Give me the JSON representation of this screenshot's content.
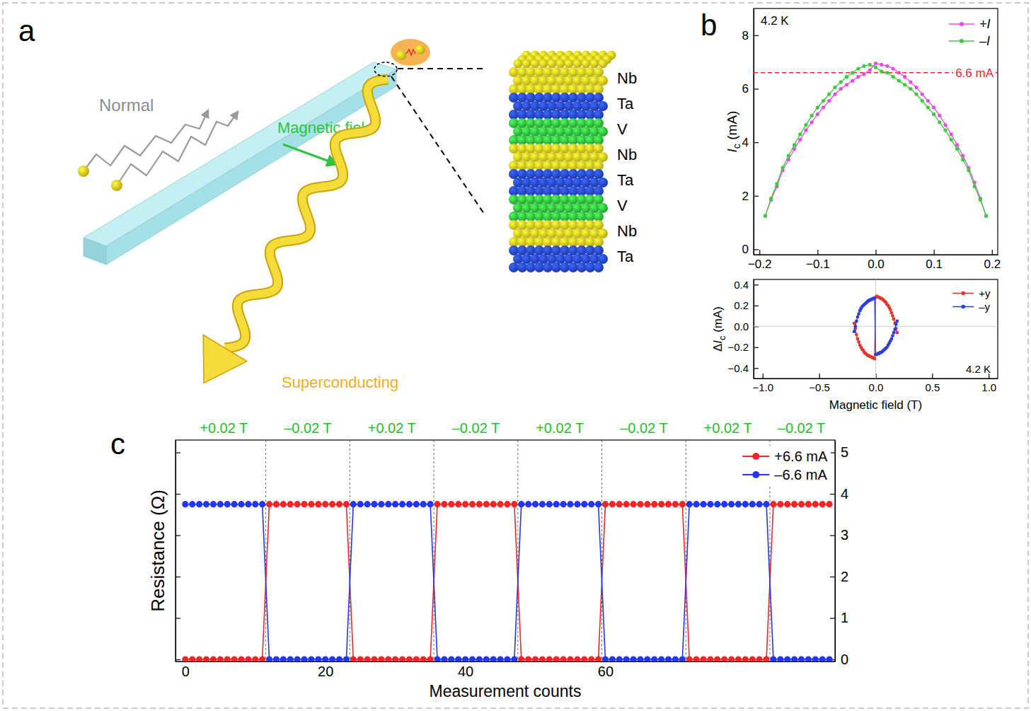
{
  "diagram": {
    "panel_label": "a",
    "normal_label": "Normal",
    "field_label": "Magnetic field",
    "superconducting_label": "Superconducting",
    "layers": [
      "Nb",
      "Ta",
      "V",
      "Nb",
      "Ta",
      "V",
      "Nb",
      "Ta"
    ],
    "layer_colors": {
      "Nb": "#e6d21e",
      "Ta": "#2442d6",
      "V": "#2fc23a"
    }
  },
  "chart_data": [
    {
      "type": "line",
      "panel_label": "b",
      "y_label": "Ic (mA)",
      "x": [
        -0.19,
        -0.18,
        -0.17,
        -0.16,
        -0.15,
        -0.14,
        -0.13,
        -0.12,
        -0.11,
        -0.1,
        -0.09,
        -0.08,
        -0.07,
        -0.06,
        -0.05,
        -0.04,
        -0.03,
        -0.02,
        -0.01,
        0,
        0.01,
        0.02,
        0.03,
        0.04,
        0.05,
        0.06,
        0.07,
        0.08,
        0.09,
        0.1,
        0.11,
        0.12,
        0.13,
        0.14,
        0.15,
        0.16,
        0.17,
        0.18,
        0.19
      ],
      "xlim": [
        -0.21,
        0.21
      ],
      "xticks": [
        {
          "value": -0.2,
          "label": "−0.2"
        },
        {
          "value": -0.1,
          "label": "−0.1"
        },
        {
          "value": 0,
          "label": "0.0"
        },
        0.1,
        0.2
      ],
      "ylim": [
        -0.2,
        9
      ],
      "yticks": [
        0,
        2,
        4,
        6,
        8
      ],
      "series": [
        {
          "name": "+I",
          "color": "#e84ce8",
          "marker": "circle",
          "line_style": "solid",
          "values": [
            1.25,
            1.85,
            2.35,
            2.95,
            3.35,
            3.75,
            4.1,
            4.45,
            4.75,
            5.05,
            5.3,
            5.55,
            5.8,
            6.0,
            6.15,
            6.3,
            6.45,
            6.55,
            6.7,
            6.95,
            6.9,
            6.85,
            6.75,
            6.6,
            6.45,
            6.25,
            6.05,
            5.8,
            5.55,
            5.3,
            5.0,
            4.65,
            4.3,
            3.9,
            3.5,
            3.05,
            2.5,
            1.9,
            1.25
          ]
        },
        {
          "name": "–I",
          "color": "#3ccc3c",
          "marker": "circle",
          "line_style": "solid",
          "values": [
            1.25,
            1.9,
            2.45,
            3.05,
            3.5,
            3.9,
            4.3,
            4.65,
            5.0,
            5.3,
            5.55,
            5.8,
            6.05,
            6.25,
            6.45,
            6.6,
            6.75,
            6.85,
            6.9,
            6.8,
            6.65,
            6.6,
            6.45,
            6.3,
            6.15,
            6.0,
            5.8,
            5.55,
            5.3,
            5.05,
            4.75,
            4.45,
            4.1,
            3.75,
            3.35,
            2.95,
            2.35,
            1.85,
            1.25
          ]
        }
      ],
      "legend": "upper right",
      "annotations": [
        {
          "text": "4.2 K"
        }
      ],
      "reference_lines": [
        {
          "y": 6.6,
          "label": "6.6 mA"
        }
      ]
    },
    {
      "type": "line",
      "x_label": "Magnetic field (T)",
      "y_label": "ΔIc (mA)",
      "x": [
        -0.19,
        -0.18,
        -0.17,
        -0.16,
        -0.15,
        -0.14,
        -0.13,
        -0.12,
        -0.11,
        -0.1,
        -0.09,
        -0.08,
        -0.07,
        -0.06,
        -0.05,
        -0.04,
        -0.03,
        -0.02,
        -0.01,
        0,
        0.01,
        0.02,
        0.03,
        0.04,
        0.05,
        0.06,
        0.07,
        0.08,
        0.09,
        0.1,
        0.11,
        0.12,
        0.13,
        0.14,
        0.15,
        0.16,
        0.17,
        0.18,
        0.19
      ],
      "xlim": [
        -1.08,
        1.08
      ],
      "xticks": [
        {
          "value": -1,
          "label": "−1.0"
        },
        {
          "value": -0.5,
          "label": "−0.5"
        },
        {
          "value": 0,
          "label": "0.0"
        },
        0.5,
        {
          "value": 1,
          "label": "1.0"
        }
      ],
      "ylim": [
        -0.5,
        0.45
      ],
      "yticks": [
        {
          "value": -0.4,
          "label": "−0.4"
        },
        {
          "value": -0.2,
          "label": "−0.2"
        },
        {
          "value": 0,
          "label": "0.0"
        },
        0.2,
        0.4
      ],
      "series": [
        {
          "name": "+y",
          "color": "#e8342c",
          "marker": "circle",
          "line_style": "solid",
          "values": [
            0.03,
            -0.02,
            -0.08,
            -0.12,
            -0.15,
            -0.18,
            -0.2,
            -0.22,
            -0.23,
            -0.25,
            -0.26,
            -0.27,
            -0.28,
            -0.28,
            -0.29,
            -0.29,
            -0.3,
            -0.3,
            -0.31,
            0.28,
            0.29,
            0.28,
            0.28,
            0.27,
            0.27,
            0.26,
            0.25,
            0.24,
            0.23,
            0.21,
            0.2,
            0.18,
            0.16,
            0.13,
            0.1,
            0.07,
            0.03,
            -0.02,
            -0.06
          ]
        },
        {
          "name": "–y",
          "color": "#2c3ce8",
          "marker": "circle",
          "line_style": "solid",
          "values": [
            -0.05,
            0,
            0.05,
            0.09,
            0.12,
            0.15,
            0.17,
            0.19,
            0.2,
            0.21,
            0.22,
            0.23,
            0.24,
            0.25,
            0.25,
            0.26,
            0.26,
            0.27,
            0.27,
            -0.27,
            -0.27,
            -0.26,
            -0.26,
            -0.25,
            -0.25,
            -0.24,
            -0.23,
            -0.22,
            -0.21,
            -0.2,
            -0.18,
            -0.16,
            -0.14,
            -0.12,
            -0.09,
            -0.06,
            -0.03,
            0.02,
            0.05
          ]
        }
      ],
      "legend": "upper right",
      "annotations": [
        {
          "text": "4.2 K"
        }
      ]
    },
    {
      "type": "line",
      "panel_label": "c",
      "x_label": "Measurement counts",
      "y_label": "Resistance (Ω)",
      "x": [
        0,
        1,
        2,
        3,
        4,
        5,
        6,
        7,
        8,
        9,
        10,
        11,
        12,
        13,
        14,
        15,
        16,
        17,
        18,
        19,
        20,
        21,
        22,
        23,
        24,
        25,
        26,
        27,
        28,
        29,
        30,
        31,
        32,
        33,
        34,
        35,
        36,
        37,
        38,
        39,
        40,
        41,
        42,
        43,
        44,
        45,
        46,
        47,
        48,
        49,
        50,
        51,
        52,
        53,
        54,
        55,
        56,
        57,
        58,
        59,
        60,
        61,
        62,
        63,
        64,
        65,
        66,
        67,
        68,
        69,
        70,
        71,
        72,
        73,
        74,
        75,
        76,
        77,
        78,
        79,
        80,
        81,
        82,
        83,
        84,
        85,
        86,
        87,
        88,
        89,
        90,
        91,
        92
      ],
      "xlim": [
        -1.4,
        92.8
      ],
      "xticks": [
        0,
        20,
        40,
        60
      ],
      "ylim": [
        -0.05,
        5.3
      ],
      "yticks": [
        0,
        1,
        2,
        3,
        4,
        5
      ],
      "segments": [
        {
          "label": "+0.02 T",
          "start": 0,
          "end": 11
        },
        {
          "label": "–0.02 T",
          "start": 12,
          "end": 23
        },
        {
          "label": "+0.02 T",
          "start": 24,
          "end": 35
        },
        {
          "label": "–0.02 T",
          "start": 36,
          "end": 47
        },
        {
          "label": "+0.02 T",
          "start": 48,
          "end": 59
        },
        {
          "label": "–0.02 T",
          "start": 60,
          "end": 71
        },
        {
          "label": "+0.02 T",
          "start": 72,
          "end": 83
        },
        {
          "label": "–0.02 T",
          "start": 84,
          "end": 92
        }
      ],
      "series": [
        {
          "name": "+6.6 mA",
          "color": "#f02626",
          "marker": "circle",
          "line_style": "solid",
          "values": [
            0,
            0,
            0,
            0,
            0,
            0,
            0,
            0,
            0,
            0,
            0,
            0,
            3.75,
            3.75,
            3.75,
            3.75,
            3.75,
            3.75,
            3.75,
            3.75,
            3.75,
            3.75,
            3.75,
            3.75,
            0,
            0,
            0,
            0,
            0,
            0,
            0,
            0,
            0,
            0,
            0,
            0,
            3.75,
            3.75,
            3.75,
            3.75,
            3.75,
            3.75,
            3.75,
            3.75,
            3.75,
            3.75,
            3.75,
            3.75,
            0,
            0,
            0,
            0,
            0,
            0,
            0,
            0,
            0,
            0,
            0,
            0,
            3.75,
            3.75,
            3.75,
            3.75,
            3.75,
            3.75,
            3.75,
            3.75,
            3.75,
            3.75,
            3.75,
            3.75,
            0,
            0,
            0,
            0,
            0,
            0,
            0,
            0,
            0,
            0,
            0,
            0,
            3.75,
            3.75,
            3.75,
            3.75,
            3.75,
            3.75,
            3.75,
            3.75,
            3.75
          ]
        },
        {
          "name": "–6.6 mA",
          "color": "#2236ee",
          "marker": "circle",
          "line_style": "solid",
          "values": [
            3.75,
            3.75,
            3.75,
            3.75,
            3.75,
            3.75,
            3.75,
            3.75,
            3.75,
            3.75,
            3.75,
            3.75,
            0,
            0,
            0,
            0,
            0,
            0,
            0,
            0,
            0,
            0,
            0,
            0,
            3.75,
            3.75,
            3.75,
            3.75,
            3.75,
            3.75,
            3.75,
            3.75,
            3.75,
            3.75,
            3.75,
            3.75,
            0,
            0,
            0,
            0,
            0,
            0,
            0,
            0,
            0,
            0,
            0,
            0,
            3.75,
            3.75,
            3.75,
            3.75,
            3.75,
            3.75,
            3.75,
            3.75,
            3.75,
            3.75,
            3.75,
            3.75,
            0,
            0,
            0,
            0,
            0,
            0,
            0,
            0,
            0,
            0,
            0,
            0,
            3.75,
            3.75,
            3.75,
            3.75,
            3.75,
            3.75,
            3.75,
            3.75,
            3.75,
            3.75,
            3.75,
            3.75,
            0,
            0,
            0,
            0,
            0,
            0,
            0,
            0,
            0
          ]
        }
      ],
      "legend": "upper right"
    }
  ]
}
